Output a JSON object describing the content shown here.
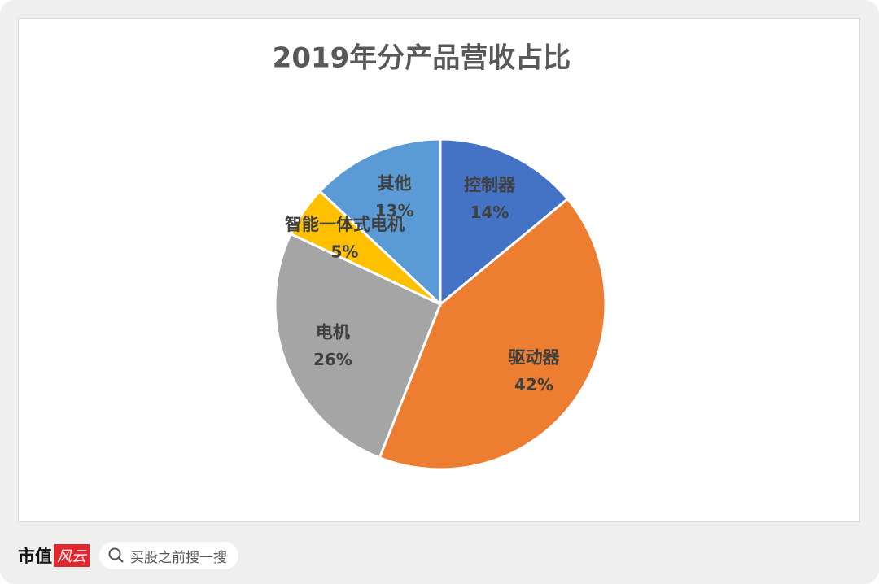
{
  "chart_data": {
    "type": "pie",
    "title": "2019年分产品营收占比",
    "categories": [
      "控制器",
      "驱动器",
      "电机",
      "智能一体式电机",
      "其他"
    ],
    "values": [
      14,
      42,
      26,
      5,
      13
    ],
    "value_labels": [
      "14%",
      "42%",
      "26%",
      "5%",
      "13%"
    ],
    "colors": [
      "#4472c4",
      "#ed7d31",
      "#a5a5a5",
      "#ffc000",
      "#5b9bd5"
    ]
  },
  "footer": {
    "brand": "市值",
    "brand_mark": "风云",
    "search": "买股之前搜一搜"
  }
}
